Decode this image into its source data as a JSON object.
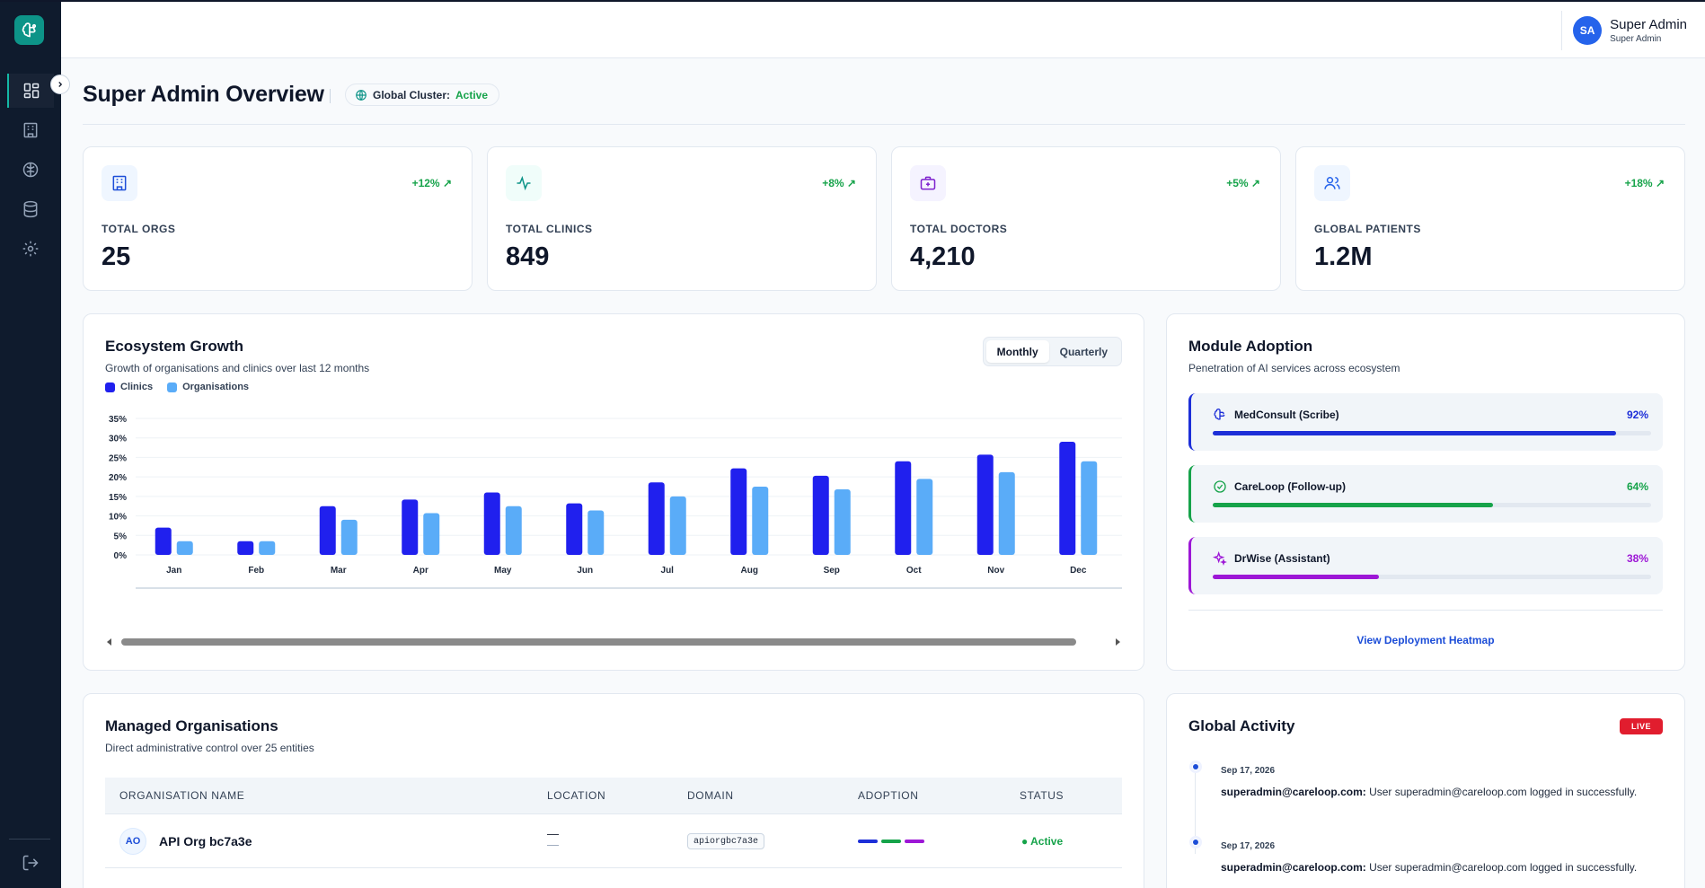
{
  "header": {
    "user_initials": "SA",
    "user_name": "Super Admin",
    "user_role": "Super Admin"
  },
  "page": {
    "title": "Super Admin Overview",
    "cluster_label": "Global Cluster:",
    "cluster_status": "Active"
  },
  "stats": [
    {
      "label": "TOTAL ORGS",
      "value": "25",
      "delta": "+12% ↗",
      "icon": "building-icon",
      "color": "#1d4ed8"
    },
    {
      "label": "TOTAL CLINICS",
      "value": "849",
      "delta": "+8% ↗",
      "icon": "activity-icon",
      "color": "#0d9488"
    },
    {
      "label": "TOTAL DOCTORS",
      "value": "4,210",
      "delta": "+5% ↗",
      "icon": "medical-briefcase-icon",
      "color": "#7e22ce"
    },
    {
      "label": "GLOBAL PATIENTS",
      "value": "1.2M",
      "delta": "+18% ↗",
      "icon": "users-icon",
      "color": "#2563eb"
    }
  ],
  "growth": {
    "title": "Ecosystem Growth",
    "subtitle": "Growth of organisations and clinics over last 12 months",
    "toggle": [
      "Monthly",
      "Quarterly"
    ]
  },
  "chart_data": {
    "type": "bar",
    "categories": [
      "Jan",
      "Feb",
      "Mar",
      "Apr",
      "May",
      "Jun",
      "Jul",
      "Aug",
      "Sep",
      "Oct",
      "Nov",
      "Dec"
    ],
    "series": [
      {
        "name": "Clinics",
        "color": "#2020ee",
        "values": [
          7,
          3.5,
          12.5,
          14.2,
          16,
          13.2,
          18.6,
          22.2,
          20.3,
          24,
          25.7,
          29
        ]
      },
      {
        "name": "Organisations",
        "color": "#5aacf8",
        "values": [
          3.5,
          3.5,
          9,
          10.7,
          12.5,
          11.4,
          15,
          17.5,
          16.8,
          19.5,
          21.2,
          24
        ]
      }
    ],
    "yticks": [
      "0%",
      "5%",
      "10%",
      "15%",
      "20%",
      "25%",
      "30%",
      "35%"
    ],
    "ylim": [
      0,
      35
    ],
    "grid": true,
    "legend": "top-left"
  },
  "modules": {
    "title": "Module Adoption",
    "subtitle": "Penetration of AI services across ecosystem",
    "items": [
      {
        "name": "MedConsult (Scribe)",
        "pct_label": "92%",
        "pct": 0.92,
        "color": "#1d2fd8",
        "icon": "brain-icon"
      },
      {
        "name": "CareLoop (Follow-up)",
        "pct_label": "64%",
        "pct": 0.64,
        "color": "#16a34a",
        "icon": "check-circle-icon"
      },
      {
        "name": "DrWise (Assistant)",
        "pct_label": "38%",
        "pct": 0.38,
        "color": "#9d17d6",
        "icon": "sparkles-icon"
      }
    ],
    "link": "View Deployment Heatmap"
  },
  "orgs": {
    "title": "Managed Organisations",
    "subtitle": "Direct administrative control over 25 entities",
    "columns": [
      "ORGANISATION NAME",
      "LOCATION",
      "DOMAIN",
      "ADOPTION",
      "STATUS"
    ],
    "rows": [
      {
        "initials": "AO",
        "name": "API Org bc7a3e",
        "location": "—",
        "domain": "apiorgbc7a3e",
        "status": "● Active"
      }
    ]
  },
  "activity": {
    "title": "Global Activity",
    "badge": "LIVE",
    "items": [
      {
        "date": "Sep 17, 2026",
        "user": "superadmin@careloop.com:",
        "text": " User superadmin@careloop.com logged in successfully."
      },
      {
        "date": "Sep 17, 2026",
        "user": "superadmin@careloop.com:",
        "text": " User superadmin@careloop.com logged in successfully."
      }
    ]
  }
}
